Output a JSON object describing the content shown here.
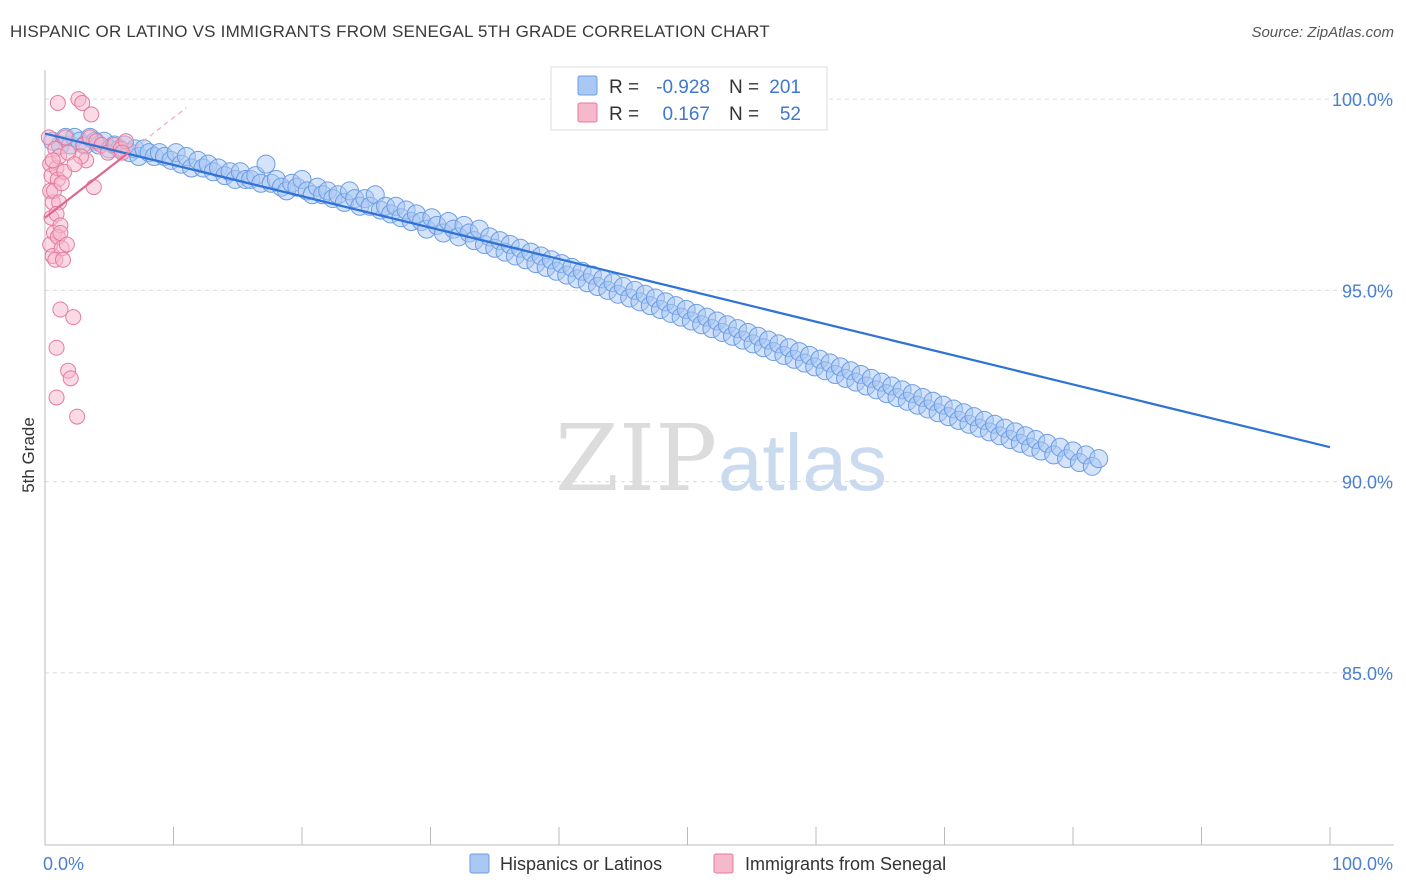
{
  "header": {
    "title": "HISPANIC OR LATINO VS IMMIGRANTS FROM SENEGAL 5TH GRADE CORRELATION CHART",
    "source": "Source: ZipAtlas.com"
  },
  "watermark": {
    "zip": "ZIP",
    "atlas": "atlas"
  },
  "stats": [
    {
      "r_label": "R =",
      "r_value": "-0.928",
      "n_label": "N =",
      "n_value": "201",
      "color": "#a9c8f3",
      "stroke": "#6b9de3"
    },
    {
      "r_label": "R =",
      "r_value": "0.167",
      "n_label": "N =",
      "n_value": "52",
      "color": "#f6b8cb",
      "stroke": "#e67a9e"
    }
  ],
  "legend": [
    {
      "label": "Hispanics or Latinos",
      "color": "#a9c8f3",
      "stroke": "#6b9de3"
    },
    {
      "label": "Immigrants from Senegal",
      "color": "#f6b8cb",
      "stroke": "#e67a9e"
    }
  ],
  "chart_data": {
    "type": "scatter",
    "title": "HISPANIC OR LATINO VS IMMIGRANTS FROM SENEGAL 5TH GRADE CORRELATION CHART",
    "xlabel": "",
    "ylabel": "5th Grade",
    "xlim": [
      0,
      100
    ],
    "ylim": [
      80.5,
      100.5
    ],
    "x_tick_labels": [
      "0.0%",
      "100.0%"
    ],
    "y_ticks": [
      85,
      90,
      95,
      100
    ],
    "y_tick_labels": [
      "85.0%",
      "90.0%",
      "95.0%",
      "100.0%"
    ],
    "grid": true,
    "legend_position": "bottom-center",
    "series": [
      {
        "name": "Hispanics or Latinos",
        "color": "#6b9de3",
        "fill": "#a9c8f3",
        "trend": {
          "x": [
            0,
            100
          ],
          "y": [
            99.1,
            90.9
          ]
        },
        "points": [
          [
            0.6,
            98.9
          ],
          [
            1.2,
            98.8
          ],
          [
            1.6,
            99.0
          ],
          [
            2.0,
            98.8
          ],
          [
            2.3,
            99.0
          ],
          [
            2.7,
            98.9
          ],
          [
            3.1,
            98.8
          ],
          [
            3.5,
            99.0
          ],
          [
            3.9,
            98.9
          ],
          [
            4.2,
            98.8
          ],
          [
            4.6,
            98.9
          ],
          [
            5.0,
            98.7
          ],
          [
            5.4,
            98.8
          ],
          [
            5.8,
            98.7
          ],
          [
            6.2,
            98.8
          ],
          [
            6.6,
            98.6
          ],
          [
            7.0,
            98.7
          ],
          [
            7.3,
            98.5
          ],
          [
            7.7,
            98.7
          ],
          [
            8.1,
            98.6
          ],
          [
            8.5,
            98.5
          ],
          [
            8.9,
            98.6
          ],
          [
            9.3,
            98.5
          ],
          [
            9.8,
            98.4
          ],
          [
            10.2,
            98.6
          ],
          [
            10.6,
            98.3
          ],
          [
            11.0,
            98.5
          ],
          [
            11.4,
            98.2
          ],
          [
            11.9,
            98.4
          ],
          [
            12.3,
            98.2
          ],
          [
            12.7,
            98.3
          ],
          [
            13.1,
            98.1
          ],
          [
            13.5,
            98.2
          ],
          [
            14.0,
            98.0
          ],
          [
            14.4,
            98.1
          ],
          [
            14.8,
            97.9
          ],
          [
            15.2,
            98.1
          ],
          [
            15.6,
            97.9
          ],
          [
            16.0,
            97.9
          ],
          [
            16.4,
            98.0
          ],
          [
            16.8,
            97.8
          ],
          [
            17.2,
            98.3
          ],
          [
            17.6,
            97.8
          ],
          [
            18.0,
            97.9
          ],
          [
            18.4,
            97.7
          ],
          [
            18.8,
            97.6
          ],
          [
            19.2,
            97.8
          ],
          [
            19.6,
            97.7
          ],
          [
            20.0,
            97.9
          ],
          [
            20.4,
            97.6
          ],
          [
            20.8,
            97.5
          ],
          [
            21.2,
            97.7
          ],
          [
            21.6,
            97.5
          ],
          [
            22.0,
            97.6
          ],
          [
            22.4,
            97.4
          ],
          [
            22.8,
            97.5
          ],
          [
            23.3,
            97.3
          ],
          [
            23.7,
            97.6
          ],
          [
            24.1,
            97.4
          ],
          [
            24.5,
            97.2
          ],
          [
            24.9,
            97.4
          ],
          [
            25.3,
            97.2
          ],
          [
            25.7,
            97.5
          ],
          [
            26.1,
            97.1
          ],
          [
            26.5,
            97.2
          ],
          [
            26.9,
            97.0
          ],
          [
            27.3,
            97.2
          ],
          [
            27.7,
            96.9
          ],
          [
            28.1,
            97.1
          ],
          [
            28.5,
            96.8
          ],
          [
            28.9,
            97.0
          ],
          [
            29.3,
            96.8
          ],
          [
            29.7,
            96.6
          ],
          [
            30.1,
            96.9
          ],
          [
            30.5,
            96.7
          ],
          [
            31.0,
            96.5
          ],
          [
            31.4,
            96.8
          ],
          [
            31.8,
            96.6
          ],
          [
            32.2,
            96.4
          ],
          [
            32.6,
            96.7
          ],
          [
            33.0,
            96.5
          ],
          [
            33.4,
            96.3
          ],
          [
            33.8,
            96.6
          ],
          [
            34.2,
            96.2
          ],
          [
            34.6,
            96.4
          ],
          [
            35.0,
            96.1
          ],
          [
            35.4,
            96.3
          ],
          [
            35.8,
            96.0
          ],
          [
            36.2,
            96.2
          ],
          [
            36.6,
            95.9
          ],
          [
            37.0,
            96.1
          ],
          [
            37.4,
            95.8
          ],
          [
            37.8,
            96.0
          ],
          [
            38.2,
            95.7
          ],
          [
            38.6,
            95.9
          ],
          [
            39.0,
            95.6
          ],
          [
            39.4,
            95.8
          ],
          [
            39.8,
            95.5
          ],
          [
            40.2,
            95.7
          ],
          [
            40.6,
            95.4
          ],
          [
            41.0,
            95.6
          ],
          [
            41.4,
            95.3
          ],
          [
            41.8,
            95.5
          ],
          [
            42.2,
            95.2
          ],
          [
            42.6,
            95.4
          ],
          [
            43.0,
            95.1
          ],
          [
            43.4,
            95.3
          ],
          [
            43.8,
            95.0
          ],
          [
            44.2,
            95.2
          ],
          [
            44.6,
            94.9
          ],
          [
            45.0,
            95.1
          ],
          [
            45.5,
            94.8
          ],
          [
            45.9,
            95.0
          ],
          [
            46.3,
            94.7
          ],
          [
            46.7,
            94.9
          ],
          [
            47.1,
            94.6
          ],
          [
            47.5,
            94.8
          ],
          [
            47.9,
            94.5
          ],
          [
            48.3,
            94.7
          ],
          [
            48.7,
            94.4
          ],
          [
            49.1,
            94.6
          ],
          [
            49.5,
            94.3
          ],
          [
            49.9,
            94.5
          ],
          [
            50.3,
            94.2
          ],
          [
            50.7,
            94.4
          ],
          [
            51.1,
            94.1
          ],
          [
            51.5,
            94.3
          ],
          [
            51.9,
            94.0
          ],
          [
            52.3,
            94.2
          ],
          [
            52.7,
            93.9
          ],
          [
            53.1,
            94.1
          ],
          [
            53.5,
            93.8
          ],
          [
            53.9,
            94.0
          ],
          [
            54.3,
            93.7
          ],
          [
            54.7,
            93.9
          ],
          [
            55.1,
            93.6
          ],
          [
            55.5,
            93.8
          ],
          [
            55.9,
            93.5
          ],
          [
            56.3,
            93.7
          ],
          [
            56.7,
            93.4
          ],
          [
            57.1,
            93.6
          ],
          [
            57.5,
            93.3
          ],
          [
            57.9,
            93.5
          ],
          [
            58.3,
            93.2
          ],
          [
            58.7,
            93.4
          ],
          [
            59.1,
            93.1
          ],
          [
            59.5,
            93.3
          ],
          [
            59.9,
            93.0
          ],
          [
            60.3,
            93.2
          ],
          [
            60.7,
            92.9
          ],
          [
            61.1,
            93.1
          ],
          [
            61.5,
            92.8
          ],
          [
            61.9,
            93.0
          ],
          [
            62.3,
            92.7
          ],
          [
            62.7,
            92.9
          ],
          [
            63.1,
            92.6
          ],
          [
            63.5,
            92.8
          ],
          [
            63.9,
            92.5
          ],
          [
            64.3,
            92.7
          ],
          [
            64.7,
            92.4
          ],
          [
            65.1,
            92.6
          ],
          [
            65.5,
            92.3
          ],
          [
            65.9,
            92.5
          ],
          [
            66.3,
            92.2
          ],
          [
            66.7,
            92.4
          ],
          [
            67.1,
            92.1
          ],
          [
            67.5,
            92.3
          ],
          [
            67.9,
            92.0
          ],
          [
            68.3,
            92.2
          ],
          [
            68.7,
            91.9
          ],
          [
            69.1,
            92.1
          ],
          [
            69.5,
            91.8
          ],
          [
            69.9,
            92.0
          ],
          [
            70.3,
            91.7
          ],
          [
            70.7,
            91.9
          ],
          [
            71.1,
            91.6
          ],
          [
            71.5,
            91.8
          ],
          [
            71.9,
            91.5
          ],
          [
            72.3,
            91.7
          ],
          [
            72.7,
            91.4
          ],
          [
            73.1,
            91.6
          ],
          [
            73.5,
            91.3
          ],
          [
            73.9,
            91.5
          ],
          [
            74.3,
            91.2
          ],
          [
            74.7,
            91.4
          ],
          [
            75.1,
            91.1
          ],
          [
            75.5,
            91.3
          ],
          [
            75.9,
            91.0
          ],
          [
            76.3,
            91.2
          ],
          [
            76.7,
            90.9
          ],
          [
            77.1,
            91.1
          ],
          [
            77.5,
            90.8
          ],
          [
            78.0,
            91.0
          ],
          [
            78.5,
            90.7
          ],
          [
            79.0,
            90.9
          ],
          [
            79.5,
            90.6
          ],
          [
            80.0,
            90.8
          ],
          [
            80.5,
            90.5
          ],
          [
            81.0,
            90.7
          ],
          [
            81.5,
            90.4
          ],
          [
            82.0,
            90.6
          ]
        ]
      },
      {
        "name": "Immigrants from Senegal",
        "color": "#e67a9e",
        "fill": "#f6b8cb",
        "trend": {
          "x": [
            0,
            6.5
          ],
          "y": [
            96.9,
            98.6
          ]
        },
        "points": [
          [
            0.3,
            99.0
          ],
          [
            0.4,
            98.3
          ],
          [
            0.5,
            98.0
          ],
          [
            0.4,
            97.6
          ],
          [
            0.6,
            97.3
          ],
          [
            0.5,
            96.9
          ],
          [
            0.7,
            96.5
          ],
          [
            0.4,
            96.2
          ],
          [
            0.6,
            95.9
          ],
          [
            0.8,
            98.7
          ],
          [
            0.9,
            98.2
          ],
          [
            1.0,
            97.9
          ],
          [
            0.7,
            97.6
          ],
          [
            1.1,
            97.3
          ],
          [
            0.9,
            97.0
          ],
          [
            1.2,
            96.7
          ],
          [
            1.0,
            96.4
          ],
          [
            1.3,
            96.1
          ],
          [
            0.8,
            95.8
          ],
          [
            1.4,
            95.8
          ],
          [
            1.1,
            98.5
          ],
          [
            1.5,
            98.1
          ],
          [
            1.3,
            97.8
          ],
          [
            1.6,
            99.0
          ],
          [
            1.2,
            96.5
          ],
          [
            1.7,
            96.2
          ],
          [
            0.9,
            93.5
          ],
          [
            1.2,
            94.5
          ],
          [
            1.8,
            92.9
          ],
          [
            2.0,
            92.7
          ],
          [
            2.2,
            94.3
          ],
          [
            0.9,
            92.2
          ],
          [
            2.5,
            91.7
          ],
          [
            1.0,
            99.9
          ],
          [
            2.6,
            100.0
          ],
          [
            2.9,
            99.9
          ],
          [
            3.6,
            99.6
          ],
          [
            3.0,
            98.8
          ],
          [
            3.5,
            99.0
          ],
          [
            4.0,
            98.9
          ],
          [
            4.4,
            98.8
          ],
          [
            4.9,
            98.6
          ],
          [
            5.4,
            98.8
          ],
          [
            5.9,
            98.7
          ],
          [
            6.3,
            98.9
          ],
          [
            6.0,
            98.6
          ],
          [
            3.8,
            97.7
          ],
          [
            3.2,
            98.4
          ],
          [
            2.8,
            98.5
          ],
          [
            1.8,
            98.6
          ],
          [
            0.6,
            98.4
          ],
          [
            2.3,
            98.3
          ]
        ]
      }
    ]
  }
}
